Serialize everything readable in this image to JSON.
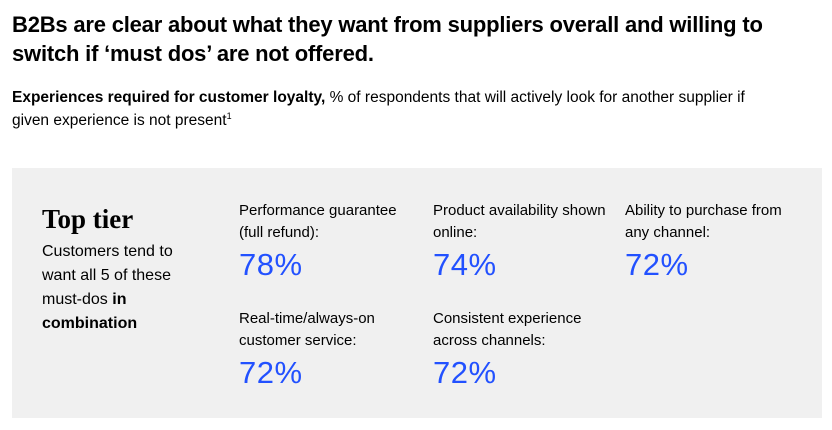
{
  "headline": "B2Bs are clear about what they want from suppliers overall and willing to switch if ‘must dos’ are not offered.",
  "subtitle": {
    "bold": "Experiences required for customer loyalty,",
    "rest": "% of respondents that will actively look for another supplier if given experience is not present",
    "footnote": "1"
  },
  "panel": {
    "title": "Top tier",
    "desc_plain": "Customers tend to want all 5 of these must-dos",
    "desc_bold": "in combination"
  },
  "colors": {
    "accent": "#2251ff",
    "panel_bg": "#f0f0f0"
  },
  "chart_data": {
    "type": "table",
    "title": "Top tier",
    "unit": "%",
    "items": [
      {
        "label": "Performance guarantee (full refund):",
        "value": 78,
        "display": "78%"
      },
      {
        "label": "Product availability shown online:",
        "value": 74,
        "display": "74%"
      },
      {
        "label": "Ability to purchase from any channel:",
        "value": 72,
        "display": "72%"
      },
      {
        "label": "Real-time/always-on customer service:",
        "value": 72,
        "display": "72%"
      },
      {
        "label": "Consistent experience across channels:",
        "value": 72,
        "display": "72%"
      }
    ]
  }
}
